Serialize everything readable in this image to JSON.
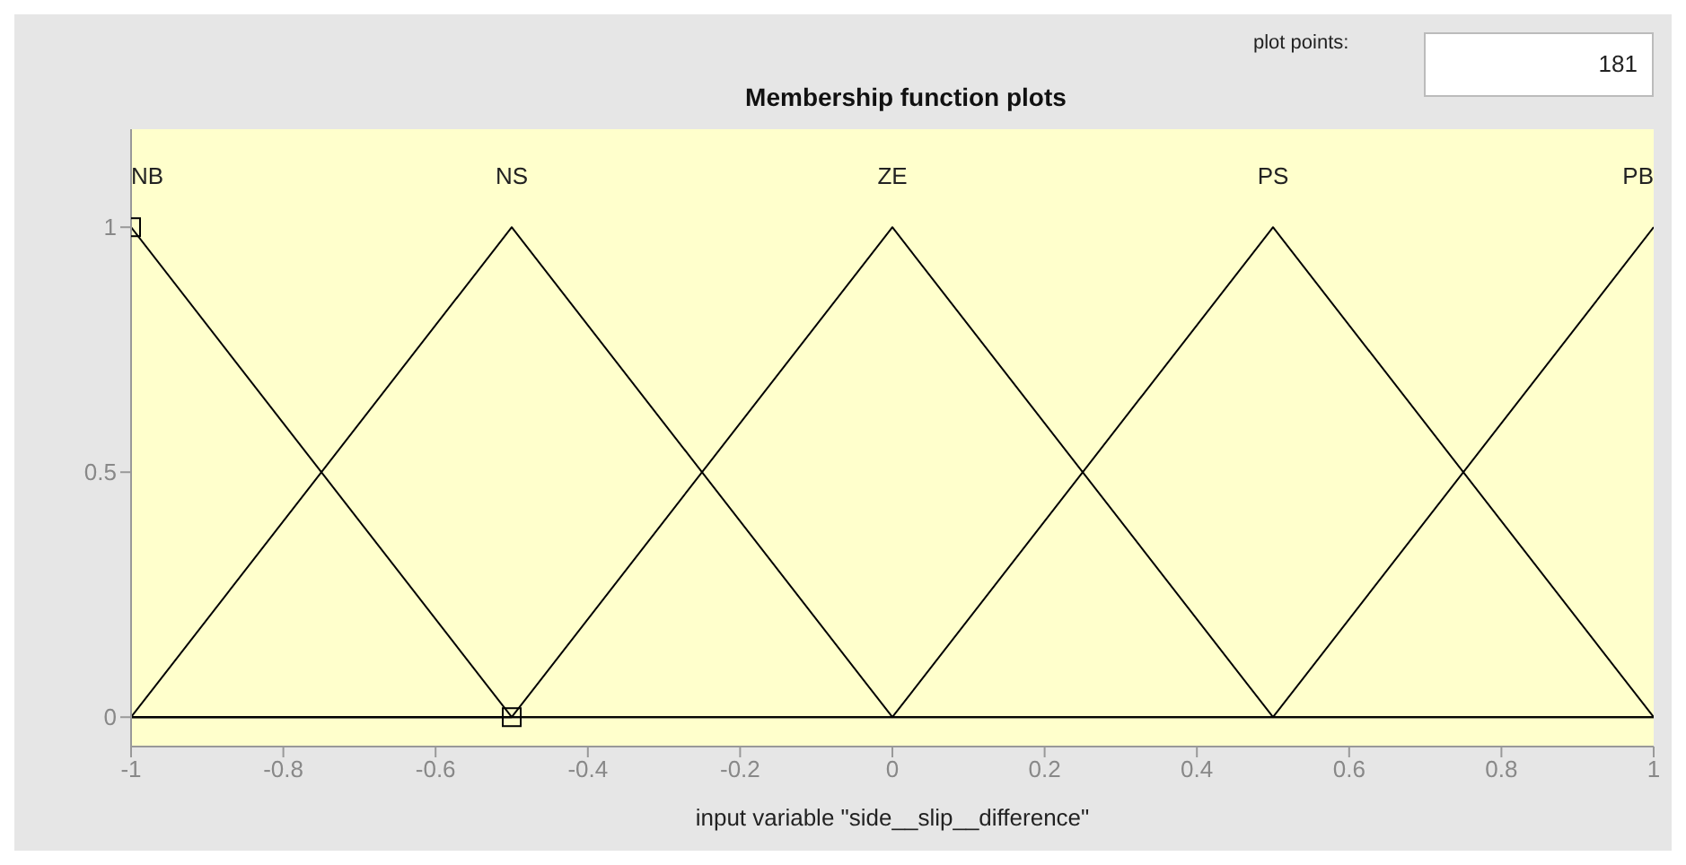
{
  "chart_data": {
    "type": "line",
    "title": "Membership function plots",
    "xlabel": "input variable \"side__slip__difference\"",
    "annotations": [
      "plot points:",
      "181"
    ],
    "series": [
      {
        "name": "NB",
        "color": "#000000",
        "x": [
          -1,
          -0.5
        ],
        "values": [
          1,
          0
        ],
        "marker": "square"
      },
      {
        "name": "NS",
        "color": "#000000",
        "x": [
          -1,
          -0.5,
          0,
          1
        ],
        "values": [
          0,
          1,
          0,
          0
        ]
      },
      {
        "name": "ZE",
        "color": "#000000",
        "x": [
          -1,
          -0.5,
          0,
          0.5,
          1
        ],
        "values": [
          0,
          0,
          1,
          0,
          0
        ]
      },
      {
        "name": "PS",
        "color": "#000000",
        "x": [
          -1,
          0,
          0.5,
          1
        ],
        "values": [
          0,
          0,
          1,
          0
        ]
      },
      {
        "name": "PB",
        "color": "#000000",
        "x": [
          -1,
          0.5,
          1
        ],
        "values": [
          0,
          0,
          1
        ]
      }
    ],
    "xlim": [
      -1,
      1
    ],
    "xticks": [
      -1,
      -0.8,
      -0.6,
      -0.4,
      -0.2,
      0,
      0.2,
      0.4,
      0.6,
      0.8,
      1
    ],
    "ylim": [
      -0.06,
      1.2
    ],
    "yticks": [
      0,
      0.5,
      1
    ],
    "grid": false,
    "legend": false,
    "marker": "none",
    "line_style": "solid"
  }
}
